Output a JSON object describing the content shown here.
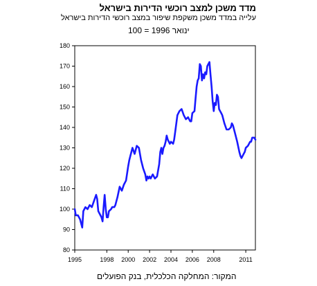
{
  "chart_data": {
    "type": "line",
    "title": "מדד משכן למצב רוכשי הדירות בישראל",
    "subtitle": "עלייה במדד משכן משקפת שיפור במצב רוכשי הדירות בישראל",
    "base_note": "ינואר 1996 = 100",
    "source": "המקור: המחלקה הכלכלית, בנק הפועלים",
    "xlabel": "",
    "ylabel": "",
    "xlim": [
      1995,
      2011.9
    ],
    "ylim": [
      80,
      180
    ],
    "y_ticks": [
      80,
      90,
      100,
      110,
      120,
      130,
      140,
      150,
      160,
      170,
      180
    ],
    "x_ticks": [
      1995,
      1998,
      2000,
      2002,
      2004,
      2006,
      2008,
      2011
    ],
    "grid": false,
    "legend": "none",
    "line_color": "#1a1aff",
    "series": [
      {
        "x": [
          1995.0,
          1995.1,
          1995.3,
          1995.5,
          1995.7,
          1995.8,
          1996.0,
          1996.2,
          1996.4,
          1996.6,
          1996.8,
          1997.0,
          1997.1,
          1997.2,
          1997.4,
          1997.5,
          1997.6,
          1997.7,
          1997.8,
          1997.9,
          1998.0,
          1998.1,
          1998.2,
          1998.4,
          1998.5,
          1998.6,
          1998.7,
          1998.8,
          1999.0,
          1999.2,
          1999.4,
          1999.6,
          1999.8,
          2000.0,
          2000.1,
          2000.2,
          2000.4,
          2000.6,
          2000.8,
          2001.0,
          2001.2,
          2001.4,
          2001.6,
          2001.7,
          2001.8,
          2001.9,
          2002.0,
          2002.1,
          2002.3,
          2002.5,
          2002.7,
          2002.9,
          2003.0,
          2003.1,
          2003.2,
          2003.3,
          2003.4,
          2003.5,
          2003.6,
          2003.7,
          2003.8,
          2003.9,
          2004.0,
          2004.2,
          2004.3,
          2004.4,
          2004.6,
          2004.8,
          2005.0,
          2005.2,
          2005.4,
          2005.6,
          2005.8,
          2005.9,
          2006.0,
          2006.2,
          2006.3,
          2006.4,
          2006.5,
          2006.6,
          2006.7,
          2006.8,
          2006.9,
          2007.0,
          2007.1,
          2007.2,
          2007.3,
          2007.4,
          2007.5,
          2007.6,
          2007.7,
          2007.8,
          2007.9,
          2008.0,
          2008.1,
          2008.2,
          2008.3,
          2008.4,
          2008.5,
          2008.6,
          2008.7,
          2008.8,
          2009.0,
          2009.2,
          2009.4,
          2009.6,
          2009.7,
          2009.8,
          2010.0,
          2010.2,
          2010.4,
          2010.5,
          2010.6,
          2010.8,
          2010.9,
          2011.0,
          2011.2,
          2011.4,
          2011.5,
          2011.6,
          2011.8,
          2011.9
        ],
        "y": [
          100,
          97,
          97,
          95,
          91,
          99,
          101,
          100,
          102,
          101,
          104,
          107,
          105,
          99,
          97,
          96,
          94,
          101,
          107,
          100,
          96,
          96,
          99,
          100,
          101,
          101,
          101,
          102,
          106,
          111,
          109,
          112,
          114,
          121,
          124,
          126,
          130,
          127,
          131,
          130,
          124,
          120,
          117,
          114,
          116,
          115,
          116,
          115,
          117,
          115,
          116,
          122,
          128,
          130,
          127,
          130,
          131,
          133,
          136,
          134,
          133,
          132,
          133,
          132,
          134,
          138,
          146,
          148,
          149,
          146,
          144,
          145,
          143,
          143,
          147,
          148,
          154,
          160,
          163,
          164,
          171,
          170,
          163,
          166,
          164,
          167,
          166,
          170,
          171,
          172,
          166,
          160,
          153,
          148,
          152,
          151,
          156,
          155,
          149,
          148,
          147,
          146,
          142,
          139,
          139,
          140,
          142,
          141,
          137,
          133,
          128,
          126,
          125,
          127,
          128,
          130,
          131,
          133,
          133,
          135,
          135,
          134
        ]
      }
    ]
  }
}
